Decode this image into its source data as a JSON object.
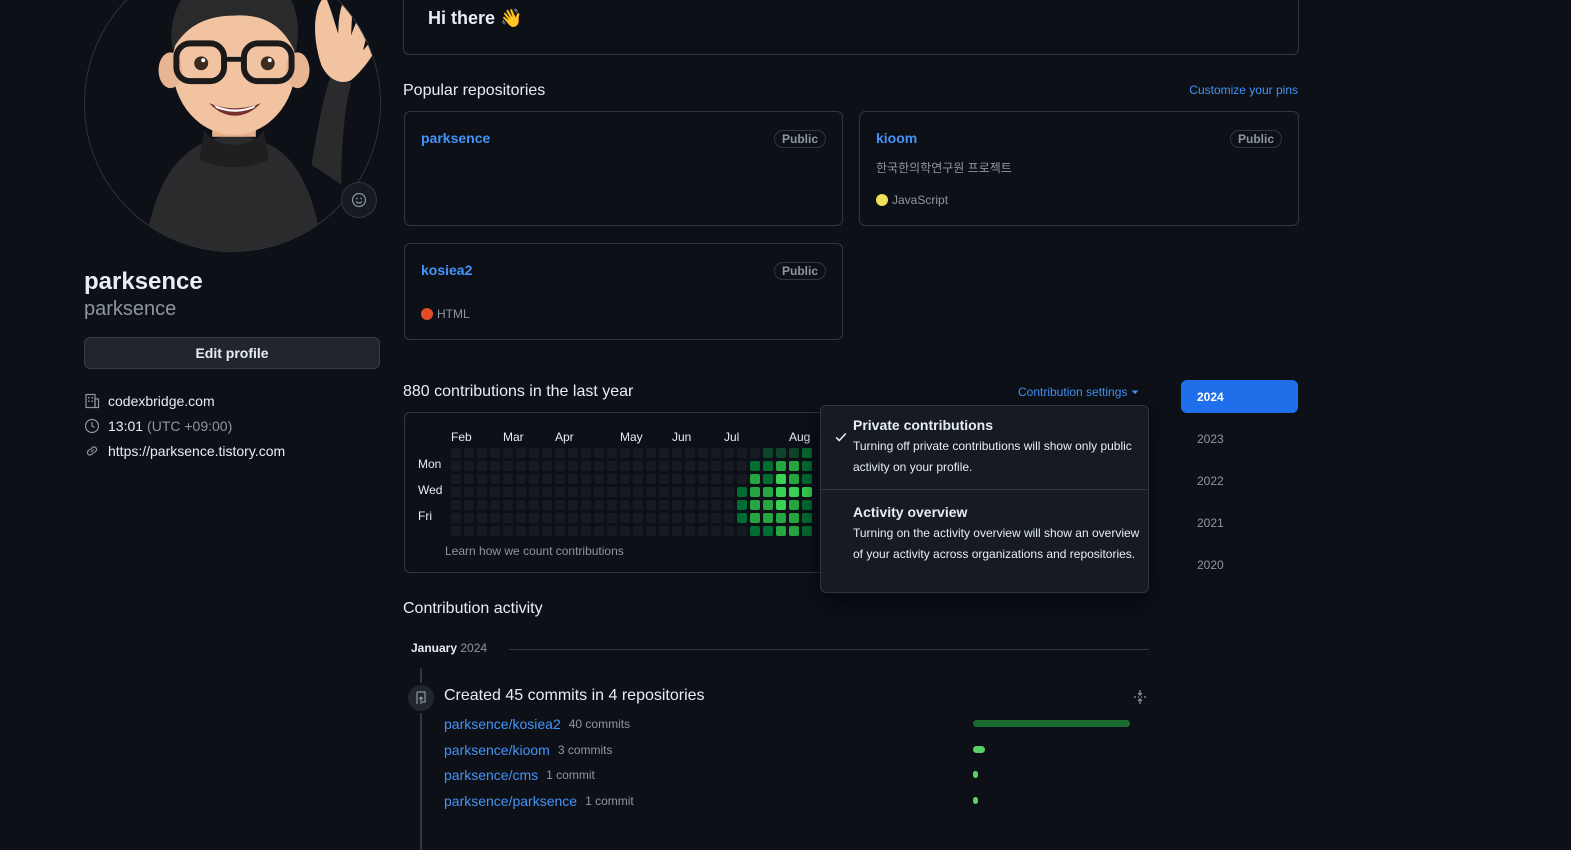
{
  "profile": {
    "display_name": "parksence",
    "login": "parksence",
    "edit_button": "Edit profile",
    "company": "codexbridge.com",
    "local_time": "13:01",
    "timezone": "(UTC +09:00)",
    "website": "https://parksence.tistory.com"
  },
  "readme": {
    "heading": "Hi there 👋"
  },
  "pinned": {
    "title": "Popular repositories",
    "customize_label": "Customize your pins",
    "repos": [
      {
        "name": "parksence",
        "visibility": "Public",
        "description": "",
        "language": "",
        "language_color": ""
      },
      {
        "name": "kioom",
        "visibility": "Public",
        "description": "한국한의학연구원 프로젝트",
        "language": "JavaScript",
        "language_color": "#f1e05a"
      },
      {
        "name": "kosiea2",
        "visibility": "Public",
        "description": "",
        "language": "HTML",
        "language_color": "#e34c26"
      }
    ]
  },
  "contributions": {
    "title": "880 contributions in the last year",
    "settings_label": "Contribution settings",
    "months": [
      "Feb",
      "Mar",
      "Apr",
      "May",
      "Jun",
      "Jul",
      "Aug"
    ],
    "weekdays": [
      "Mon",
      "Wed",
      "Fri"
    ],
    "footer_link": "Learn how we count contributions",
    "level_colors": [
      "#161b22",
      "#0e4429",
      "#006d32",
      "#26a641",
      "#39d353"
    ]
  },
  "settings_menu": {
    "items": [
      {
        "title": "Private contributions",
        "description": "Turning off private contributions will show only public activity on your profile.",
        "checked": true
      },
      {
        "title": "Activity overview",
        "description": "Turning on the activity overview will show an overview of your activity across organizations and repositories.",
        "checked": false
      }
    ]
  },
  "years": [
    "2024",
    "2023",
    "2022",
    "2021",
    "2020"
  ],
  "activity": {
    "title": "Contribution activity",
    "month": "January",
    "year": "2024",
    "summary": "Created 45 commits in 4 repositories",
    "repos": [
      {
        "name": "parksence/kosiea2",
        "commits": "40 commits",
        "share": 0.89
      },
      {
        "name": "parksence/kioom",
        "commits": "3 commits",
        "share": 0.07
      },
      {
        "name": "parksence/cms",
        "commits": "1 commit",
        "share": 0.02
      },
      {
        "name": "parksence/parksence",
        "commits": "1 commit",
        "share": 0.02
      }
    ]
  },
  "colors": {
    "accent": "#4493f8",
    "selected_year": "#1f6feb",
    "bar_dark": "#196c2e",
    "bar_light": "#56d364"
  }
}
